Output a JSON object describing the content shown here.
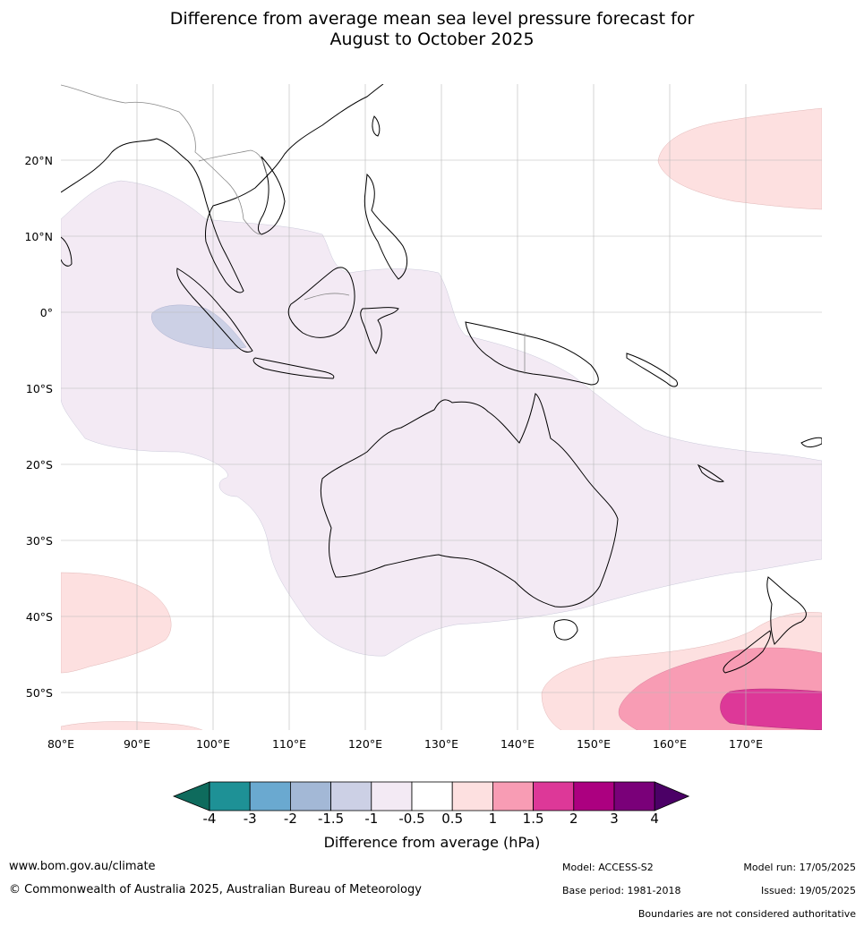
{
  "title": {
    "line1": "Difference from average mean sea level pressure forecast for",
    "line2": "August to October 2025"
  },
  "map": {
    "lon_labels": [
      "80°E",
      "90°E",
      "100°E",
      "110°E",
      "120°E",
      "130°E",
      "140°E",
      "150°E",
      "160°E",
      "170°E"
    ],
    "lat_labels": [
      "20°N",
      "10°N",
      "0°",
      "10°S",
      "20°S",
      "30°S",
      "40°S",
      "50°S"
    ],
    "lon_range": [
      80,
      180
    ],
    "lat_range": [
      -55,
      30
    ]
  },
  "colorbar": {
    "label": "Difference from average (hPa)",
    "ticks": [
      "-4",
      "-3",
      "-2",
      "-1.5",
      "-1",
      "-0.5",
      "0.5",
      "1",
      "1.5",
      "2",
      "3",
      "4"
    ],
    "colors": [
      "#0e6b5d",
      "#1e9196",
      "#6aa9d0",
      "#a3b8d6",
      "#ccd0e5",
      "#f3eaf4",
      "#ffffff",
      "#fde0e0",
      "#f89cb4",
      "#dd3898",
      "#ac0080",
      "#7a0079",
      "#4b0066"
    ]
  },
  "footer": {
    "website": "www.bom.gov.au/climate",
    "copyright": "© Commonwealth of Australia 2025, Australian Bureau of Meteorology",
    "model": "Model: ACCESS-S2",
    "base_period": "Base period: 1981-2018",
    "model_run": "Model run: 17/05/2025",
    "issued": "Issued: 19/05/2025",
    "disclaimer": "Boundaries are not considered authoritative"
  }
}
